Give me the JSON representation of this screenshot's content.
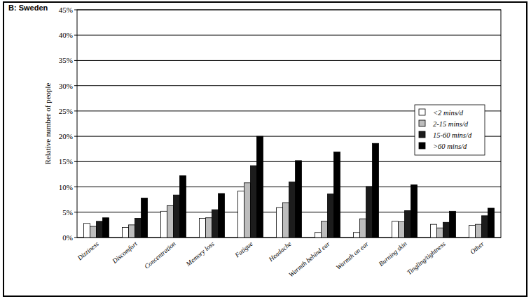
{
  "chart_data": {
    "type": "bar",
    "title": "B: Sweden",
    "y_label": "Relative number of people",
    "categories": [
      "Dizziness",
      "Discomfort",
      "Concentration",
      "Memory loss",
      "Fatigue",
      "Headache",
      "Warmth behind ear",
      "Warmth on ear",
      "Burning skin",
      "Tingling/tightness",
      "Other"
    ],
    "series": [
      {
        "name": "<2 mins/d",
        "color": "#ffffff",
        "values": [
          2.8,
          2.0,
          5.2,
          3.8,
          9.2,
          5.9,
          1.0,
          1.0,
          3.2,
          2.6,
          2.4
        ]
      },
      {
        "name": "2-15 mins/d",
        "color": "#bdbdbd",
        "values": [
          2.2,
          2.5,
          6.3,
          3.9,
          10.8,
          6.9,
          3.2,
          3.7,
          3.1,
          1.9,
          2.6
        ]
      },
      {
        "name": "15-60 mins/d",
        "color": "#1c1c1c",
        "values": [
          3.2,
          3.8,
          8.4,
          5.5,
          14.2,
          11.0,
          8.6,
          10.1,
          5.3,
          3.0,
          4.3
        ]
      },
      {
        "name": ">60 mins/d",
        "color": "#000000",
        "values": [
          3.9,
          7.8,
          12.2,
          8.7,
          20.0,
          15.2,
          16.9,
          18.6,
          10.4,
          5.2,
          5.8
        ]
      }
    ],
    "ylim": [
      0,
      45
    ],
    "yticks": [
      {
        "value": 0,
        "label": "0%"
      },
      {
        "value": 5,
        "label": "5%"
      },
      {
        "value": 10,
        "label": "10%"
      },
      {
        "value": 15,
        "label": "15%"
      },
      {
        "value": 20,
        "label": "20%"
      },
      {
        "value": 25,
        "label": "25%"
      },
      {
        "value": 30,
        "label": "30%"
      },
      {
        "value": 35,
        "label": "35%"
      },
      {
        "value": 40,
        "label": "40%"
      },
      {
        "value": 45,
        "label": "45%"
      }
    ],
    "grid": true,
    "legend": "right"
  }
}
